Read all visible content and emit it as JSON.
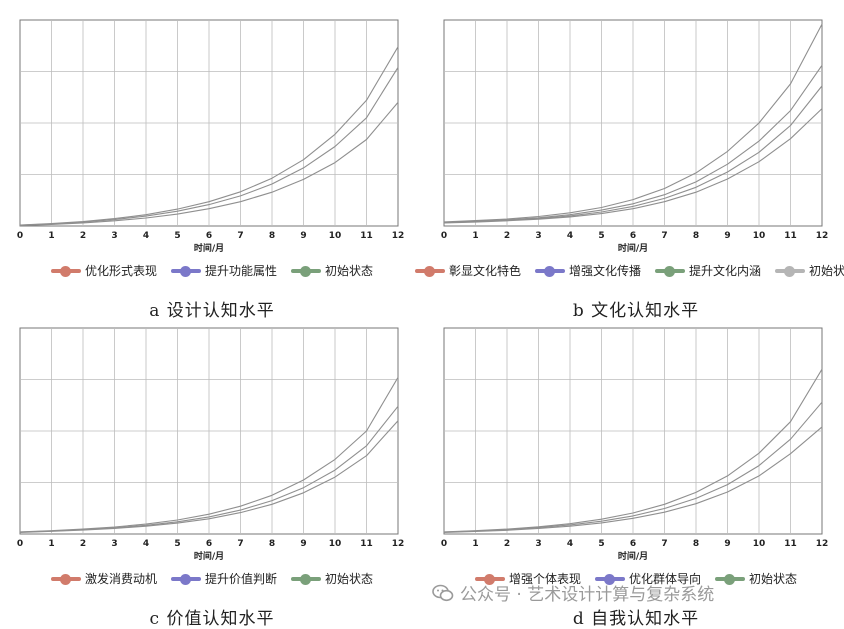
{
  "watermark": {
    "text": "公众号 · 艺术设计计算与复杂系统",
    "icon": "wechat-icon"
  },
  "chart_data": [
    {
      "type": "line",
      "caption": "a 设计认知水平",
      "xlabel": "时间/月",
      "ylabel": "",
      "xlim": [
        0,
        12
      ],
      "ylim": [
        0,
        1
      ],
      "xticks": [
        "0",
        "1",
        "2",
        "3",
        "4",
        "5",
        "6",
        "7",
        "8",
        "9",
        "10",
        "11",
        "12"
      ],
      "grid": true,
      "legend_position": "bottom",
      "x": [
        0,
        1,
        2,
        3,
        4,
        5,
        6,
        7,
        8,
        9,
        10,
        11,
        12
      ],
      "series": [
        {
          "name": "优化形式表现",
          "color": "#d17b6b",
          "values": [
            0.005,
            0.012,
            0.022,
            0.036,
            0.055,
            0.082,
            0.118,
            0.166,
            0.232,
            0.322,
            0.445,
            0.61,
            0.87
          ]
        },
        {
          "name": "提升功能属性",
          "color": "#7b78c9",
          "values": [
            0.004,
            0.01,
            0.019,
            0.031,
            0.048,
            0.072,
            0.104,
            0.146,
            0.204,
            0.282,
            0.386,
            0.525,
            0.77
          ]
        },
        {
          "name": "初始状态",
          "color": "#7aa07a",
          "values": [
            0.003,
            0.008,
            0.015,
            0.025,
            0.039,
            0.058,
            0.084,
            0.118,
            0.164,
            0.226,
            0.308,
            0.42,
            0.6
          ]
        }
      ]
    },
    {
      "type": "line",
      "caption": "b 文化认知水平",
      "xlabel": "时间/月",
      "ylabel": "",
      "xlim": [
        0,
        12
      ],
      "ylim": [
        0,
        1
      ],
      "xticks": [
        "0",
        "1",
        "2",
        "3",
        "4",
        "5",
        "6",
        "7",
        "8",
        "9",
        "10",
        "11",
        "12"
      ],
      "grid": true,
      "legend_position": "bottom",
      "x": [
        0,
        1,
        2,
        3,
        4,
        5,
        6,
        7,
        8,
        9,
        10,
        11,
        12
      ],
      "series": [
        {
          "name": "彰显文化特色",
          "color": "#d17b6b",
          "values": [
            0.02,
            0.026,
            0.034,
            0.046,
            0.064,
            0.09,
            0.128,
            0.182,
            0.258,
            0.362,
            0.5,
            0.69,
            0.98
          ]
        },
        {
          "name": "增强文化传播",
          "color": "#7b78c9",
          "values": [
            0.018,
            0.023,
            0.03,
            0.04,
            0.055,
            0.077,
            0.108,
            0.152,
            0.214,
            0.3,
            0.412,
            0.56,
            0.78
          ]
        },
        {
          "name": "提升文化内涵",
          "color": "#7aa07a",
          "values": [
            0.016,
            0.021,
            0.027,
            0.036,
            0.049,
            0.068,
            0.095,
            0.134,
            0.188,
            0.262,
            0.358,
            0.488,
            0.68
          ]
        },
        {
          "name": "初始状态",
          "color": "#b5b5b5",
          "values": [
            0.015,
            0.019,
            0.025,
            0.033,
            0.044,
            0.06,
            0.084,
            0.118,
            0.164,
            0.228,
            0.312,
            0.424,
            0.57
          ]
        }
      ]
    },
    {
      "type": "line",
      "caption": "c 价值认知水平",
      "xlabel": "时间/月",
      "ylabel": "",
      "xlim": [
        0,
        12
      ],
      "ylim": [
        0,
        1
      ],
      "xticks": [
        "0",
        "1",
        "2",
        "3",
        "4",
        "5",
        "6",
        "7",
        "8",
        "9",
        "10",
        "11",
        "12"
      ],
      "grid": true,
      "legend_position": "bottom",
      "x": [
        0,
        1,
        2,
        3,
        4,
        5,
        6,
        7,
        8,
        9,
        10,
        11,
        12
      ],
      "series": [
        {
          "name": "激发消费动机",
          "color": "#d17b6b",
          "values": [
            0.01,
            0.016,
            0.024,
            0.034,
            0.048,
            0.068,
            0.096,
            0.135,
            0.188,
            0.262,
            0.362,
            0.5,
            0.76
          ]
        },
        {
          "name": "提升价值判断",
          "color": "#7b78c9",
          "values": [
            0.009,
            0.014,
            0.021,
            0.03,
            0.042,
            0.059,
            0.083,
            0.116,
            0.162,
            0.225,
            0.31,
            0.428,
            0.62
          ]
        },
        {
          "name": "初始状态",
          "color": "#7aa07a",
          "values": [
            0.008,
            0.013,
            0.019,
            0.027,
            0.038,
            0.053,
            0.074,
            0.104,
            0.144,
            0.2,
            0.276,
            0.38,
            0.55
          ]
        }
      ]
    },
    {
      "type": "line",
      "caption": "d 自我认知水平",
      "xlabel": "时间/月",
      "ylabel": "",
      "xlim": [
        0,
        12
      ],
      "ylim": [
        0,
        1
      ],
      "xticks": [
        "0",
        "1",
        "2",
        "3",
        "4",
        "5",
        "6",
        "7",
        "8",
        "9",
        "10",
        "11",
        "12"
      ],
      "grid": true,
      "legend_position": "bottom",
      "x": [
        0,
        1,
        2,
        3,
        4,
        5,
        6,
        7,
        8,
        9,
        10,
        11,
        12
      ],
      "series": [
        {
          "name": "增强个体表现",
          "color": "#d17b6b",
          "values": [
            0.01,
            0.016,
            0.024,
            0.035,
            0.05,
            0.072,
            0.102,
            0.144,
            0.202,
            0.282,
            0.392,
            0.545,
            0.8
          ]
        },
        {
          "name": "优化群体导向",
          "color": "#7b78c9",
          "values": [
            0.009,
            0.014,
            0.021,
            0.031,
            0.044,
            0.062,
            0.088,
            0.124,
            0.173,
            0.24,
            0.332,
            0.46,
            0.64
          ]
        },
        {
          "name": "初始状态",
          "color": "#7aa07a",
          "values": [
            0.008,
            0.012,
            0.018,
            0.027,
            0.038,
            0.054,
            0.076,
            0.106,
            0.147,
            0.204,
            0.282,
            0.39,
            0.52
          ]
        }
      ]
    }
  ]
}
